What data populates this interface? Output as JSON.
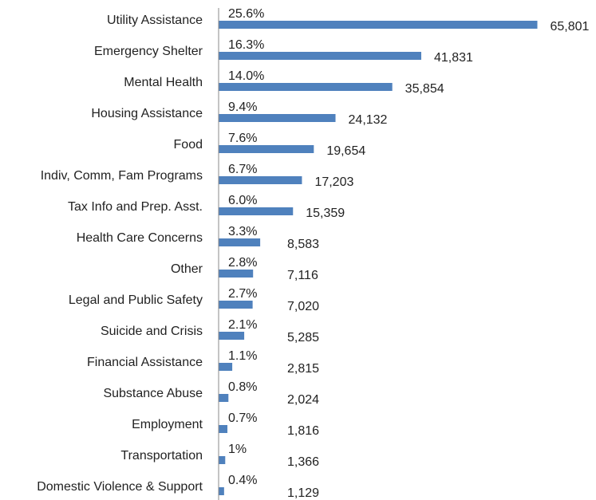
{
  "chart_data": {
    "type": "bar",
    "orientation": "horizontal",
    "categories": [
      "Utility Assistance",
      "Emergency Shelter",
      "Mental Health",
      "Housing Assistance",
      "Food",
      "Indiv, Comm, Fam Programs",
      "Tax Info and Prep. Asst.",
      "Health Care Concerns",
      "Other",
      "Legal and Public Safety",
      "Suicide and Crisis",
      "Financial Assistance",
      "Substance Abuse",
      "Employment",
      "Transportation",
      "Domestic Violence & Support"
    ],
    "values": [
      65801,
      41831,
      35854,
      24132,
      19654,
      17203,
      15359,
      8583,
      7116,
      7020,
      5285,
      2815,
      2024,
      1816,
      1366,
      1129
    ],
    "value_labels": [
      "65,801",
      "41,831",
      "35,854",
      "24,132",
      "19,654",
      "17,203",
      "15,359",
      "8,583",
      "7,116",
      "7,020",
      "5,285",
      "2,815",
      "2,024",
      "1,816",
      "1,366",
      "1,129"
    ],
    "percent_labels": [
      "25.6%",
      "16.3%",
      "14.0%",
      "9.4%",
      "7.6%",
      "6.7%",
      "6.0%",
      "3.3%",
      "2.8%",
      "2.7%",
      "2.1%",
      "1.1%",
      "0.8%",
      "0.7%",
      "1%",
      "0.4%"
    ],
    "color": "#4f81bd",
    "xlim": [
      0,
      70000
    ]
  }
}
